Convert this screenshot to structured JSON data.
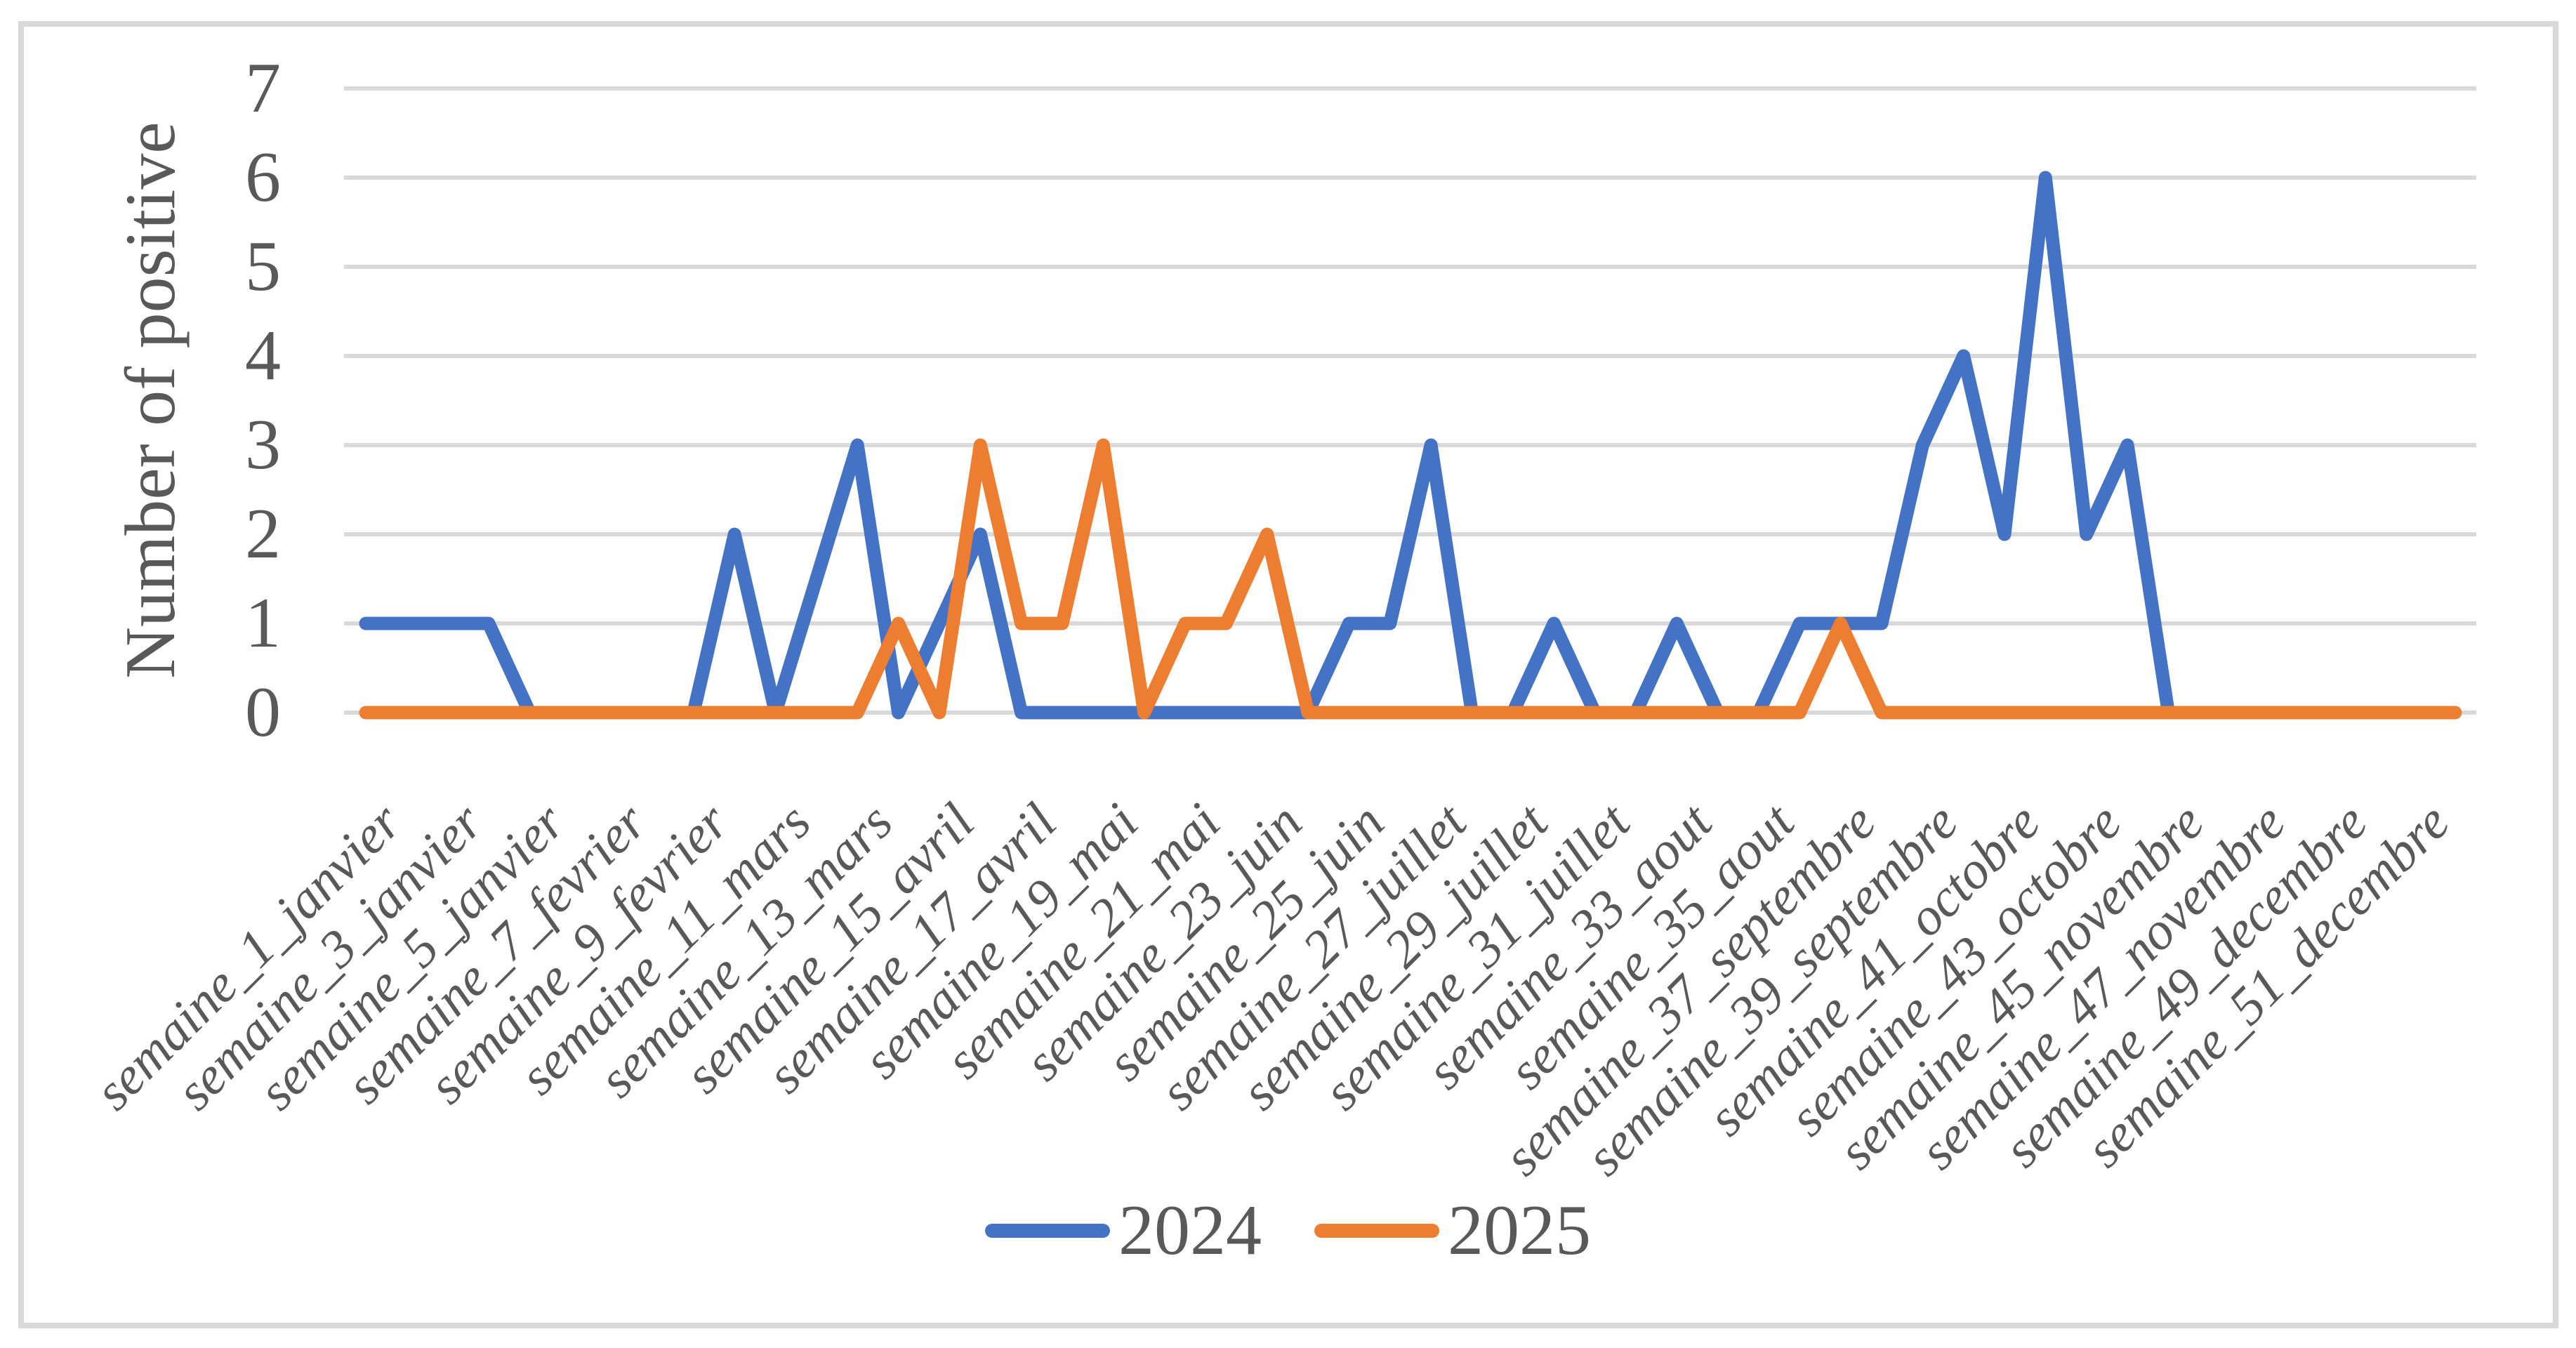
{
  "figure": {
    "background": "#FFFFFF",
    "border_color": "#D9D9D9"
  },
  "chart_data": {
    "type": "line",
    "title": "",
    "xlabel": "",
    "ylabel": "Number of positive",
    "ylim": [
      0,
      7
    ],
    "y_ticks": [
      "0",
      "1",
      "2",
      "3",
      "4",
      "5",
      "6",
      "7"
    ],
    "grid": "horizontal",
    "grid_color": "#D9D9D9",
    "text_color": "#595959",
    "legend_position": "bottom-center",
    "x_weeks": 52,
    "categories": [
      "semaine_1_janvier",
      "semaine_3_janvier",
      "semaine_5_janvier",
      "semaine_7_fevrier",
      "semaine_9_fevrier",
      "semaine_11_mars",
      "semaine_13_mars",
      "semaine_15_avril",
      "semaine_17_avril",
      "semaine_19_mai",
      "semaine_21_mai",
      "semaine_23_juin",
      "semaine_25_juin",
      "semaine_27_juillet",
      "semaine_29_juillet",
      "semaine_31_juillet",
      "semaine_33_aout",
      "semaine_35_aout",
      "semaine_37_septembre",
      "semaine_39_septembre",
      "semaine_41_octobre",
      "semaine_43_octobre",
      "semaine_45_novembre",
      "semaine_47_novembre",
      "semaine_49_decembre",
      "semaine_51_decembre"
    ],
    "series": [
      {
        "name": "2024",
        "color": "#4472C4",
        "values": [
          1,
          1,
          1,
          1,
          0,
          0,
          0,
          0,
          0,
          2,
          0,
          null,
          3,
          0,
          1,
          2,
          0,
          0,
          0,
          0,
          0,
          0,
          0,
          0,
          1,
          1,
          3,
          0,
          0,
          1,
          0,
          0,
          1,
          0,
          0,
          1,
          1,
          1,
          3,
          4,
          2,
          6,
          2,
          3,
          0,
          0,
          0,
          0,
          0,
          0,
          0,
          0
        ]
      },
      {
        "name": "2025",
        "color": "#ED7D31",
        "values": [
          0,
          0,
          0,
          0,
          0,
          0,
          0,
          0,
          0,
          0,
          0,
          0,
          0,
          1,
          0,
          3,
          1,
          1,
          3,
          0,
          1,
          1,
          2,
          0,
          0,
          0,
          0,
          0,
          0,
          0,
          0,
          0,
          0,
          0,
          0,
          0,
          1,
          0,
          0,
          0,
          0,
          0,
          0,
          0,
          0,
          0,
          0,
          0,
          0,
          0,
          0,
          0
        ]
      }
    ]
  },
  "legend": {
    "items": [
      {
        "label": "2024",
        "color": "#4472C4"
      },
      {
        "label": "2025",
        "color": "#ED7D31"
      }
    ]
  }
}
